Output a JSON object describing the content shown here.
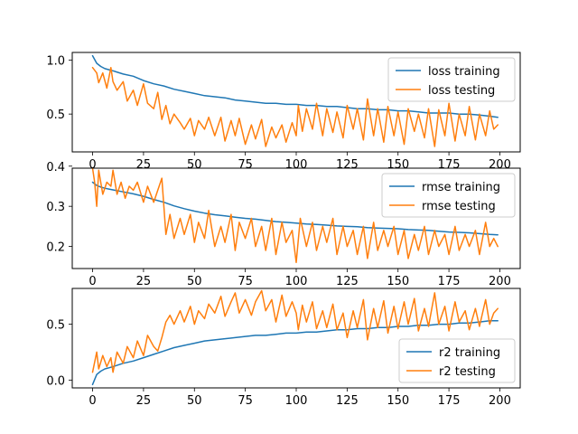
{
  "chart_data": [
    {
      "type": "line",
      "title": "",
      "xlabel": "",
      "ylabel": "",
      "xlim": [
        -10,
        210
      ],
      "ylim": [
        0.15,
        1.07
      ],
      "xticks": [
        0,
        25,
        50,
        75,
        100,
        125,
        150,
        175,
        200
      ],
      "yticks": [
        0.5,
        1.0
      ],
      "ytick_labels": [
        "0.5",
        "1.0"
      ],
      "grid": false,
      "legend_position": "top-right",
      "series": [
        {
          "name": "loss training",
          "color": "#1f77b4",
          "x": [
            0,
            2,
            4,
            6,
            8,
            10,
            15,
            20,
            25,
            30,
            35,
            40,
            45,
            50,
            55,
            60,
            65,
            70,
            75,
            80,
            85,
            90,
            95,
            100,
            105,
            110,
            115,
            120,
            125,
            130,
            135,
            140,
            145,
            150,
            155,
            160,
            165,
            170,
            175,
            180,
            185,
            190,
            195,
            199
          ],
          "values": [
            1.04,
            0.97,
            0.94,
            0.92,
            0.91,
            0.9,
            0.87,
            0.85,
            0.81,
            0.78,
            0.76,
            0.73,
            0.71,
            0.69,
            0.67,
            0.66,
            0.65,
            0.63,
            0.62,
            0.61,
            0.6,
            0.6,
            0.59,
            0.59,
            0.58,
            0.58,
            0.57,
            0.57,
            0.56,
            0.55,
            0.55,
            0.54,
            0.54,
            0.53,
            0.53,
            0.52,
            0.51,
            0.51,
            0.51,
            0.5,
            0.5,
            0.49,
            0.48,
            0.47
          ]
        },
        {
          "name": "loss testing",
          "color": "#ff7f0e",
          "x": [
            0,
            2,
            3,
            5,
            7,
            9,
            10,
            12,
            15,
            17,
            20,
            22,
            25,
            27,
            30,
            32,
            34,
            36,
            38,
            40,
            43,
            45,
            48,
            50,
            52,
            55,
            57,
            60,
            63,
            65,
            68,
            70,
            72,
            75,
            78,
            80,
            83,
            85,
            88,
            90,
            93,
            95,
            98,
            100,
            101,
            103,
            105,
            108,
            110,
            113,
            115,
            118,
            120,
            123,
            125,
            128,
            130,
            133,
            135,
            138,
            140,
            143,
            145,
            148,
            150,
            153,
            155,
            158,
            160,
            163,
            165,
            168,
            170,
            173,
            175,
            178,
            180,
            183,
            185,
            188,
            190,
            193,
            195,
            197,
            199
          ],
          "values": [
            0.93,
            0.88,
            0.79,
            0.88,
            0.74,
            0.93,
            0.8,
            0.72,
            0.8,
            0.62,
            0.72,
            0.58,
            0.78,
            0.6,
            0.55,
            0.7,
            0.45,
            0.58,
            0.41,
            0.5,
            0.42,
            0.36,
            0.46,
            0.3,
            0.44,
            0.36,
            0.47,
            0.3,
            0.47,
            0.25,
            0.44,
            0.3,
            0.46,
            0.22,
            0.4,
            0.27,
            0.45,
            0.2,
            0.38,
            0.28,
            0.4,
            0.24,
            0.42,
            0.3,
            0.58,
            0.34,
            0.55,
            0.36,
            0.6,
            0.3,
            0.55,
            0.33,
            0.52,
            0.28,
            0.58,
            0.36,
            0.55,
            0.26,
            0.64,
            0.3,
            0.55,
            0.24,
            0.57,
            0.3,
            0.52,
            0.22,
            0.55,
            0.34,
            0.5,
            0.28,
            0.55,
            0.2,
            0.54,
            0.3,
            0.6,
            0.25,
            0.5,
            0.3,
            0.57,
            0.26,
            0.5,
            0.3,
            0.53,
            0.36,
            0.4
          ]
        }
      ]
    },
    {
      "type": "line",
      "title": "",
      "xlabel": "",
      "ylabel": "",
      "xlim": [
        -10,
        210
      ],
      "ylim": [
        0.145,
        0.395
      ],
      "xticks": [
        0,
        25,
        50,
        75,
        100,
        125,
        150,
        175,
        200
      ],
      "yticks": [
        0.2,
        0.3,
        0.4
      ],
      "ytick_labels": [
        "0.2",
        "0.3",
        "0.4"
      ],
      "grid": false,
      "legend_position": "top-right",
      "series": [
        {
          "name": "rmse training",
          "color": "#1f77b4",
          "x": [
            0,
            2,
            4,
            6,
            8,
            10,
            15,
            20,
            25,
            30,
            35,
            40,
            45,
            50,
            55,
            60,
            65,
            70,
            75,
            80,
            85,
            90,
            95,
            100,
            105,
            110,
            115,
            120,
            125,
            130,
            135,
            140,
            145,
            150,
            155,
            160,
            165,
            170,
            175,
            180,
            185,
            190,
            195,
            199
          ],
          "values": [
            0.36,
            0.352,
            0.348,
            0.345,
            0.343,
            0.341,
            0.336,
            0.331,
            0.325,
            0.317,
            0.31,
            0.301,
            0.294,
            0.288,
            0.283,
            0.279,
            0.276,
            0.273,
            0.27,
            0.268,
            0.265,
            0.262,
            0.26,
            0.258,
            0.256,
            0.255,
            0.253,
            0.251,
            0.25,
            0.249,
            0.247,
            0.246,
            0.245,
            0.244,
            0.242,
            0.241,
            0.24,
            0.238,
            0.236,
            0.235,
            0.234,
            0.232,
            0.23,
            0.229
          ]
        },
        {
          "name": "rmse testing",
          "color": "#ff7f0e",
          "x": [
            0,
            1,
            2,
            3,
            5,
            7,
            9,
            10,
            12,
            14,
            16,
            18,
            20,
            22,
            25,
            27,
            30,
            32,
            34,
            36,
            38,
            40,
            43,
            45,
            48,
            50,
            52,
            55,
            57,
            60,
            63,
            65,
            68,
            70,
            72,
            75,
            78,
            80,
            83,
            85,
            88,
            90,
            93,
            95,
            98,
            100,
            102,
            105,
            108,
            110,
            113,
            115,
            118,
            120,
            123,
            125,
            128,
            130,
            133,
            135,
            138,
            140,
            143,
            145,
            148,
            150,
            153,
            155,
            158,
            160,
            163,
            165,
            168,
            170,
            173,
            175,
            178,
            180,
            183,
            185,
            188,
            190,
            193,
            195,
            197,
            199
          ],
          "values": [
            0.395,
            0.36,
            0.3,
            0.39,
            0.33,
            0.36,
            0.35,
            0.39,
            0.33,
            0.36,
            0.32,
            0.35,
            0.34,
            0.36,
            0.31,
            0.35,
            0.31,
            0.34,
            0.37,
            0.23,
            0.28,
            0.22,
            0.27,
            0.23,
            0.28,
            0.21,
            0.26,
            0.22,
            0.29,
            0.2,
            0.25,
            0.21,
            0.28,
            0.19,
            0.26,
            0.22,
            0.27,
            0.2,
            0.25,
            0.19,
            0.27,
            0.18,
            0.26,
            0.21,
            0.24,
            0.16,
            0.27,
            0.2,
            0.26,
            0.19,
            0.25,
            0.21,
            0.27,
            0.18,
            0.25,
            0.2,
            0.24,
            0.18,
            0.25,
            0.17,
            0.26,
            0.19,
            0.24,
            0.2,
            0.25,
            0.18,
            0.24,
            0.17,
            0.23,
            0.19,
            0.25,
            0.18,
            0.24,
            0.2,
            0.23,
            0.18,
            0.25,
            0.19,
            0.23,
            0.2,
            0.24,
            0.18,
            0.26,
            0.2,
            0.22,
            0.2
          ]
        }
      ]
    },
    {
      "type": "line",
      "title": "",
      "xlabel": "",
      "ylabel": "",
      "xlim": [
        -10,
        210
      ],
      "ylim": [
        -0.07,
        0.82
      ],
      "xticks": [
        0,
        25,
        50,
        75,
        100,
        125,
        150,
        175,
        200
      ],
      "yticks": [
        0.0,
        0.5
      ],
      "ytick_labels": [
        "0.0",
        "0.5"
      ],
      "grid": false,
      "legend_position": "lower-right",
      "series": [
        {
          "name": "r2 training",
          "color": "#1f77b4",
          "x": [
            0,
            2,
            4,
            6,
            8,
            10,
            15,
            20,
            25,
            30,
            35,
            40,
            45,
            50,
            55,
            60,
            65,
            70,
            75,
            80,
            85,
            90,
            95,
            100,
            105,
            110,
            115,
            120,
            125,
            130,
            135,
            140,
            145,
            150,
            155,
            160,
            165,
            170,
            175,
            180,
            185,
            190,
            195,
            199
          ],
          "values": [
            -0.04,
            0.05,
            0.08,
            0.1,
            0.11,
            0.12,
            0.15,
            0.17,
            0.2,
            0.23,
            0.26,
            0.29,
            0.31,
            0.33,
            0.35,
            0.36,
            0.37,
            0.38,
            0.39,
            0.4,
            0.4,
            0.41,
            0.42,
            0.42,
            0.43,
            0.43,
            0.44,
            0.45,
            0.45,
            0.46,
            0.46,
            0.47,
            0.47,
            0.48,
            0.48,
            0.49,
            0.49,
            0.5,
            0.5,
            0.51,
            0.51,
            0.52,
            0.53,
            0.53
          ]
        },
        {
          "name": "r2 testing",
          "color": "#ff7f0e",
          "x": [
            0,
            2,
            3,
            5,
            7,
            9,
            10,
            12,
            15,
            17,
            20,
            22,
            25,
            27,
            30,
            32,
            34,
            36,
            38,
            40,
            43,
            45,
            48,
            50,
            52,
            55,
            57,
            60,
            63,
            65,
            68,
            70,
            72,
            75,
            78,
            80,
            83,
            85,
            88,
            90,
            93,
            95,
            98,
            100,
            101,
            103,
            105,
            108,
            110,
            113,
            115,
            118,
            120,
            123,
            125,
            128,
            130,
            133,
            135,
            138,
            140,
            143,
            145,
            148,
            150,
            153,
            155,
            158,
            160,
            163,
            165,
            168,
            170,
            173,
            175,
            178,
            180,
            183,
            185,
            188,
            190,
            193,
            195,
            197,
            199
          ],
          "values": [
            0.07,
            0.25,
            0.1,
            0.22,
            0.12,
            0.2,
            0.07,
            0.25,
            0.15,
            0.3,
            0.2,
            0.35,
            0.22,
            0.4,
            0.3,
            0.26,
            0.38,
            0.52,
            0.58,
            0.5,
            0.62,
            0.52,
            0.66,
            0.5,
            0.62,
            0.55,
            0.68,
            0.6,
            0.75,
            0.57,
            0.7,
            0.78,
            0.6,
            0.72,
            0.58,
            0.7,
            0.8,
            0.62,
            0.72,
            0.52,
            0.76,
            0.57,
            0.7,
            0.6,
            0.45,
            0.67,
            0.52,
            0.7,
            0.46,
            0.62,
            0.47,
            0.68,
            0.45,
            0.6,
            0.38,
            0.62,
            0.47,
            0.72,
            0.36,
            0.64,
            0.47,
            0.71,
            0.42,
            0.66,
            0.46,
            0.7,
            0.5,
            0.73,
            0.44,
            0.64,
            0.48,
            0.78,
            0.5,
            0.66,
            0.44,
            0.7,
            0.52,
            0.62,
            0.45,
            0.64,
            0.48,
            0.72,
            0.5,
            0.6,
            0.64
          ]
        }
      ]
    }
  ]
}
